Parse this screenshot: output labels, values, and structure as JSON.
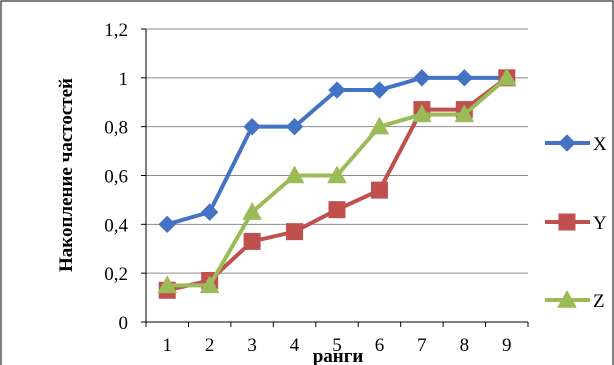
{
  "chart_data": {
    "type": "line",
    "title": "",
    "xlabel": "ранги",
    "ylabel": "Накопление частостей",
    "categories": [
      "1",
      "2",
      "3",
      "4",
      "5",
      "6",
      "7",
      "8",
      "9"
    ],
    "ylim": [
      0,
      1.2
    ],
    "yticks": [
      "0",
      "0,2",
      "0,4",
      "0,6",
      "0,8",
      "1",
      "1,2"
    ],
    "grid": true,
    "legend_position": "right",
    "series": [
      {
        "name": "X",
        "color": "#4472C4",
        "marker": "diamond",
        "values": [
          0.4,
          0.45,
          0.8,
          0.8,
          0.95,
          0.95,
          1.0,
          1.0,
          1.0
        ]
      },
      {
        "name": "Y",
        "color": "#C0504D",
        "marker": "square",
        "values": [
          0.13,
          0.17,
          0.33,
          0.37,
          0.46,
          0.54,
          0.87,
          0.87,
          1.0
        ]
      },
      {
        "name": "Z",
        "color": "#9BBB59",
        "marker": "triangle",
        "values": [
          0.15,
          0.15,
          0.45,
          0.6,
          0.6,
          0.8,
          0.85,
          0.85,
          1.0
        ]
      }
    ]
  }
}
